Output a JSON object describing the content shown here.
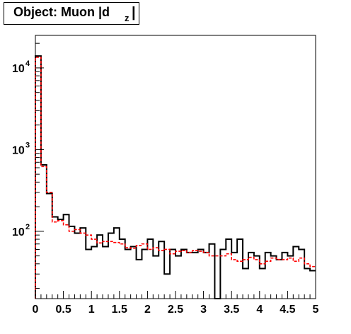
{
  "chart_data": {
    "type": "histogram",
    "title": "Object: Muon |d",
    "title_subscript": "z",
    "title_suffix": "|",
    "xlim": [
      0,
      5
    ],
    "ylim": [
      15,
      25000
    ],
    "yscale": "log",
    "x_ticks": [
      "0",
      "0.5",
      "1",
      "1.5",
      "2",
      "2.5",
      "3",
      "3.5",
      "4",
      "4.5",
      "5"
    ],
    "y_ticks": [
      {
        "base": "10",
        "exp": "2",
        "value": 100
      },
      {
        "base": "10",
        "exp": "3",
        "value": 1000
      },
      {
        "base": "10",
        "exp": "4",
        "value": 10000
      }
    ],
    "bin_width": 0.1,
    "series": [
      {
        "color": "#000000",
        "style": "solid",
        "values": [
          14000,
          650,
          290,
          150,
          140,
          160,
          115,
          95,
          110,
          60,
          65,
          90,
          65,
          95,
          110,
          80,
          60,
          65,
          45,
          60,
          80,
          50,
          75,
          30,
          60,
          50,
          60,
          55,
          55,
          60,
          55,
          70,
          12,
          60,
          80,
          55,
          80,
          35,
          55,
          50,
          35,
          55,
          50,
          45,
          55,
          50,
          65,
          60,
          35,
          33
        ]
      },
      {
        "color": "#ff0000",
        "style": "dashed",
        "values": [
          13500,
          620,
          300,
          130,
          135,
          120,
          100,
          105,
          95,
          90,
          80,
          72,
          75,
          75,
          73,
          70,
          63,
          62,
          67,
          70,
          60,
          63,
          58,
          60,
          53,
          57,
          58,
          55,
          58,
          57,
          55,
          50,
          50,
          50,
          53,
          45,
          43,
          45,
          48,
          45,
          40,
          43,
          47,
          45,
          45,
          47,
          43,
          47,
          40,
          37
        ]
      }
    ]
  }
}
